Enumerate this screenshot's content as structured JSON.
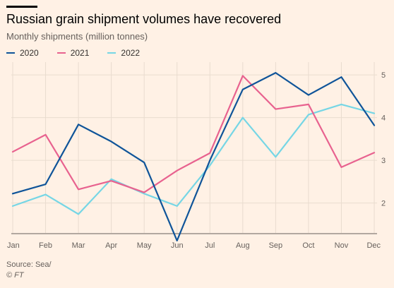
{
  "title": "Russian grain shipment volumes have recovered",
  "subtitle": "Monthly shipments (million tonnes)",
  "source": "Source: Sea/",
  "copyright": "© FT",
  "chart_data": {
    "type": "line",
    "categories": [
      "Jan",
      "Feb",
      "Mar",
      "Apr",
      "May",
      "Jun",
      "Jul",
      "Aug",
      "Sep",
      "Oct",
      "Nov",
      "Dec"
    ],
    "series": [
      {
        "name": "2020",
        "color": "#0f5499",
        "values": [
          2.22,
          2.44,
          3.84,
          3.44,
          2.95,
          1.12,
          3.0,
          4.66,
          5.05,
          4.53,
          4.95,
          3.82
        ]
      },
      {
        "name": "2021",
        "color": "#e8628f",
        "values": [
          3.2,
          3.6,
          2.32,
          2.52,
          2.25,
          2.76,
          3.17,
          4.98,
          4.2,
          4.31,
          2.84,
          3.18
        ]
      },
      {
        "name": "2022",
        "color": "#76d6e5",
        "values": [
          1.93,
          2.2,
          1.74,
          2.56,
          2.22,
          1.93,
          2.88,
          4.0,
          3.08,
          4.07,
          4.31,
          4.1
        ]
      }
    ],
    "yticks": [
      2,
      3,
      4,
      5
    ],
    "ylim": [
      1.3,
      5.3
    ],
    "grid": true,
    "legend_position": "top-left"
  }
}
